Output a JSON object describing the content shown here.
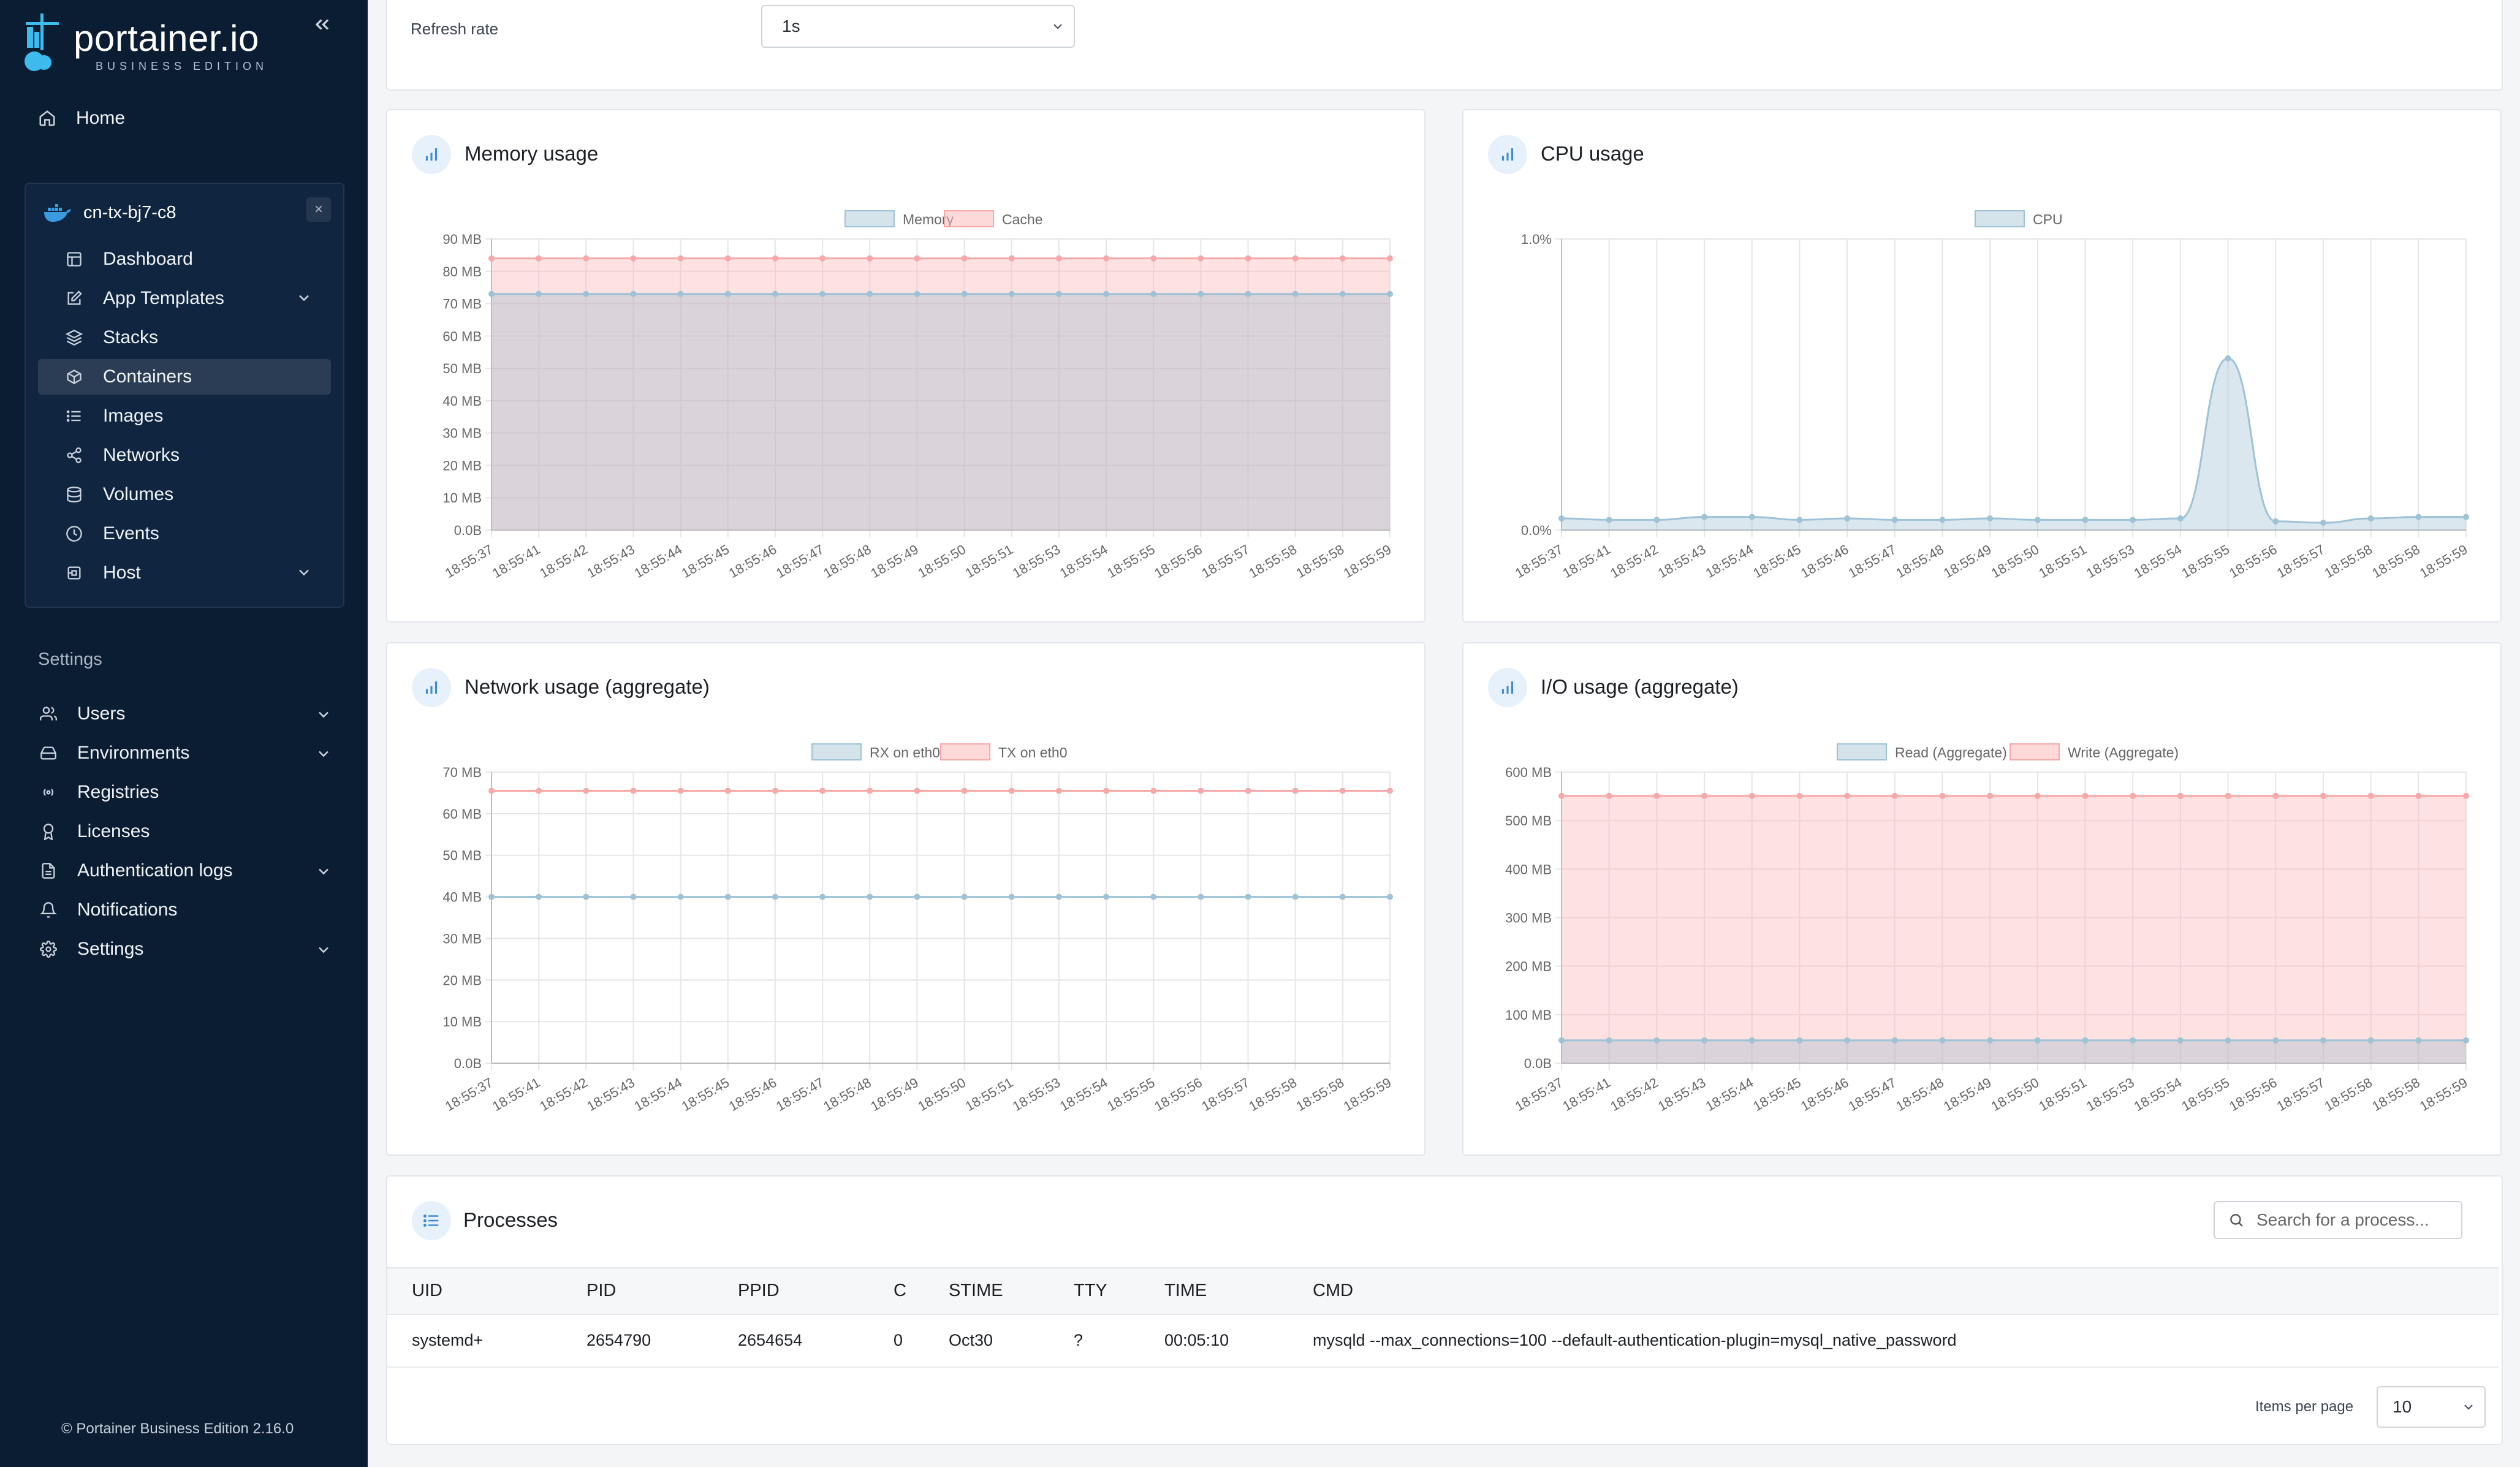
{
  "sidebar": {
    "brand_name": "portainer.io",
    "brand_sub": "BUSINESS EDITION",
    "home": "Home",
    "environment": {
      "name": "cn-tx-bj7-c8",
      "items": [
        {
          "label": "Dashboard",
          "icon": "dashboard-icon"
        },
        {
          "label": "App Templates",
          "icon": "edit-icon"
        },
        {
          "label": "Stacks",
          "icon": "layers-icon"
        },
        {
          "label": "Containers",
          "icon": "box-icon"
        },
        {
          "label": "Images",
          "icon": "list-icon"
        },
        {
          "label": "Networks",
          "icon": "share-icon"
        },
        {
          "label": "Volumes",
          "icon": "database-icon"
        },
        {
          "label": "Events",
          "icon": "clock-icon"
        },
        {
          "label": "Host",
          "icon": "cpu-icon"
        }
      ]
    },
    "settings_title": "Settings",
    "settings_items": [
      {
        "label": "Users"
      },
      {
        "label": "Environments"
      },
      {
        "label": "Registries"
      },
      {
        "label": "Licenses"
      },
      {
        "label": "Authentication logs"
      },
      {
        "label": "Notifications"
      },
      {
        "label": "Settings"
      }
    ],
    "footer": "© Portainer Business Edition 2.16.0"
  },
  "refresh": {
    "label": "Refresh rate",
    "value": "1s"
  },
  "cards": {
    "memory": {
      "title": "Memory usage"
    },
    "cpu": {
      "title": "CPU usage"
    },
    "network": {
      "title": "Network usage (aggregate)"
    },
    "io": {
      "title": "I/O usage (aggregate)"
    }
  },
  "colors": {
    "blue_line": "#9ec2d6",
    "blue_fill": "rgba(151,187,205,0.35)",
    "red_line": "#f7a8a8",
    "red_fill": "rgba(253,180,180,0.4)"
  },
  "chart_data": [
    {
      "id": "memory",
      "type": "area",
      "title": "Memory usage",
      "x": [
        "18:55:37",
        "18:55:41",
        "18:55:42",
        "18:55:43",
        "18:55:44",
        "18:55:45",
        "18:55:46",
        "18:55:47",
        "18:55:48",
        "18:55:49",
        "18:55:50",
        "18:55:51",
        "18:55:53",
        "18:55:54",
        "18:55:55",
        "18:55:56",
        "18:55:57",
        "18:55:58",
        "18:55:58",
        "18:55:59"
      ],
      "yticks": [
        "0.0B",
        "10 MB",
        "20 MB",
        "30 MB",
        "40 MB",
        "50 MB",
        "60 MB",
        "70 MB",
        "80 MB",
        "90 MB"
      ],
      "ylim": [
        0,
        90
      ],
      "legend": "top",
      "series": [
        {
          "name": "Memory",
          "color": "blue",
          "values": [
            73,
            73,
            73,
            73,
            73,
            73,
            73,
            73,
            73,
            73,
            73,
            73,
            73,
            73,
            73,
            73,
            73,
            73,
            73,
            73
          ]
        },
        {
          "name": "Cache",
          "color": "red",
          "values": [
            84,
            84,
            84,
            84,
            84,
            84,
            84,
            84,
            84,
            84,
            84,
            84,
            84,
            84,
            84,
            84,
            84,
            84,
            84,
            84
          ]
        }
      ]
    },
    {
      "id": "cpu",
      "type": "area",
      "title": "CPU usage",
      "x": [
        "18:55:37",
        "18:55:41",
        "18:55:42",
        "18:55:43",
        "18:55:44",
        "18:55:45",
        "18:55:46",
        "18:55:47",
        "18:55:48",
        "18:55:49",
        "18:55:50",
        "18:55:51",
        "18:55:53",
        "18:55:54",
        "18:55:55",
        "18:55:56",
        "18:55:57",
        "18:55:58",
        "18:55:58",
        "18:55:59"
      ],
      "yticks": [
        "0.0%",
        "1.0%"
      ],
      "ylim": [
        0,
        1.0
      ],
      "legend": "top",
      "series": [
        {
          "name": "CPU",
          "color": "blue",
          "values": [
            0.04,
            0.035,
            0.035,
            0.045,
            0.045,
            0.035,
            0.04,
            0.035,
            0.035,
            0.04,
            0.035,
            0.035,
            0.035,
            0.04,
            0.59,
            0.03,
            0.025,
            0.04,
            0.045,
            0.045
          ]
        }
      ]
    },
    {
      "id": "network",
      "type": "line",
      "title": "Network usage (aggregate)",
      "x": [
        "18:55:37",
        "18:55:41",
        "18:55:42",
        "18:55:43",
        "18:55:44",
        "18:55:45",
        "18:55:46",
        "18:55:47",
        "18:55:48",
        "18:55:49",
        "18:55:50",
        "18:55:51",
        "18:55:53",
        "18:55:54",
        "18:55:55",
        "18:55:56",
        "18:55:57",
        "18:55:58",
        "18:55:58",
        "18:55:59"
      ],
      "yticks": [
        "0.0B",
        "10 MB",
        "20 MB",
        "30 MB",
        "40 MB",
        "50 MB",
        "60 MB",
        "70 MB"
      ],
      "ylim": [
        0,
        70
      ],
      "legend": "top",
      "series": [
        {
          "name": "RX on eth0",
          "color": "blue",
          "values": [
            40,
            40,
            40,
            40,
            40,
            40,
            40,
            40,
            40,
            40,
            40,
            40,
            40,
            40,
            40,
            40,
            40,
            40,
            40,
            40
          ]
        },
        {
          "name": "TX on eth0",
          "color": "red",
          "values": [
            65.5,
            65.5,
            65.5,
            65.5,
            65.5,
            65.5,
            65.5,
            65.5,
            65.5,
            65.5,
            65.5,
            65.5,
            65.5,
            65.5,
            65.5,
            65.5,
            65.5,
            65.5,
            65.5,
            65.5
          ]
        }
      ]
    },
    {
      "id": "io",
      "type": "area",
      "title": "I/O usage (aggregate)",
      "x": [
        "18:55:37",
        "18:55:41",
        "18:55:42",
        "18:55:43",
        "18:55:44",
        "18:55:45",
        "18:55:46",
        "18:55:47",
        "18:55:48",
        "18:55:49",
        "18:55:50",
        "18:55:51",
        "18:55:53",
        "18:55:54",
        "18:55:55",
        "18:55:56",
        "18:55:57",
        "18:55:58",
        "18:55:58",
        "18:55:59"
      ],
      "yticks": [
        "0.0B",
        "100 MB",
        "200 MB",
        "300 MB",
        "400 MB",
        "500 MB",
        "600 MB"
      ],
      "ylim": [
        0,
        600
      ],
      "legend": "top",
      "series": [
        {
          "name": "Read (Aggregate)",
          "color": "blue",
          "values": [
            47,
            47,
            47,
            47,
            47,
            47,
            47,
            47,
            47,
            47,
            47,
            47,
            47,
            47,
            47,
            47,
            47,
            47,
            47,
            47
          ]
        },
        {
          "name": "Write (Aggregate)",
          "color": "red",
          "values": [
            551,
            551,
            551,
            551,
            551,
            551,
            551,
            551,
            551,
            551,
            551,
            551,
            551,
            551,
            551,
            551,
            551,
            551,
            551,
            551
          ]
        }
      ]
    }
  ],
  "processes": {
    "title": "Processes",
    "search_placeholder": "Search for a process...",
    "columns": [
      "UID",
      "PID",
      "PPID",
      "C",
      "STIME",
      "TTY",
      "TIME",
      "CMD"
    ],
    "rows": [
      [
        "systemd+",
        "2654790",
        "2654654",
        "0",
        "Oct30",
        "?",
        "00:05:10",
        "mysqld --max_connections=100 --default-authentication-plugin=mysql_native_password"
      ]
    ],
    "items_per_page_label": "Items per page",
    "items_per_page_value": "10"
  }
}
